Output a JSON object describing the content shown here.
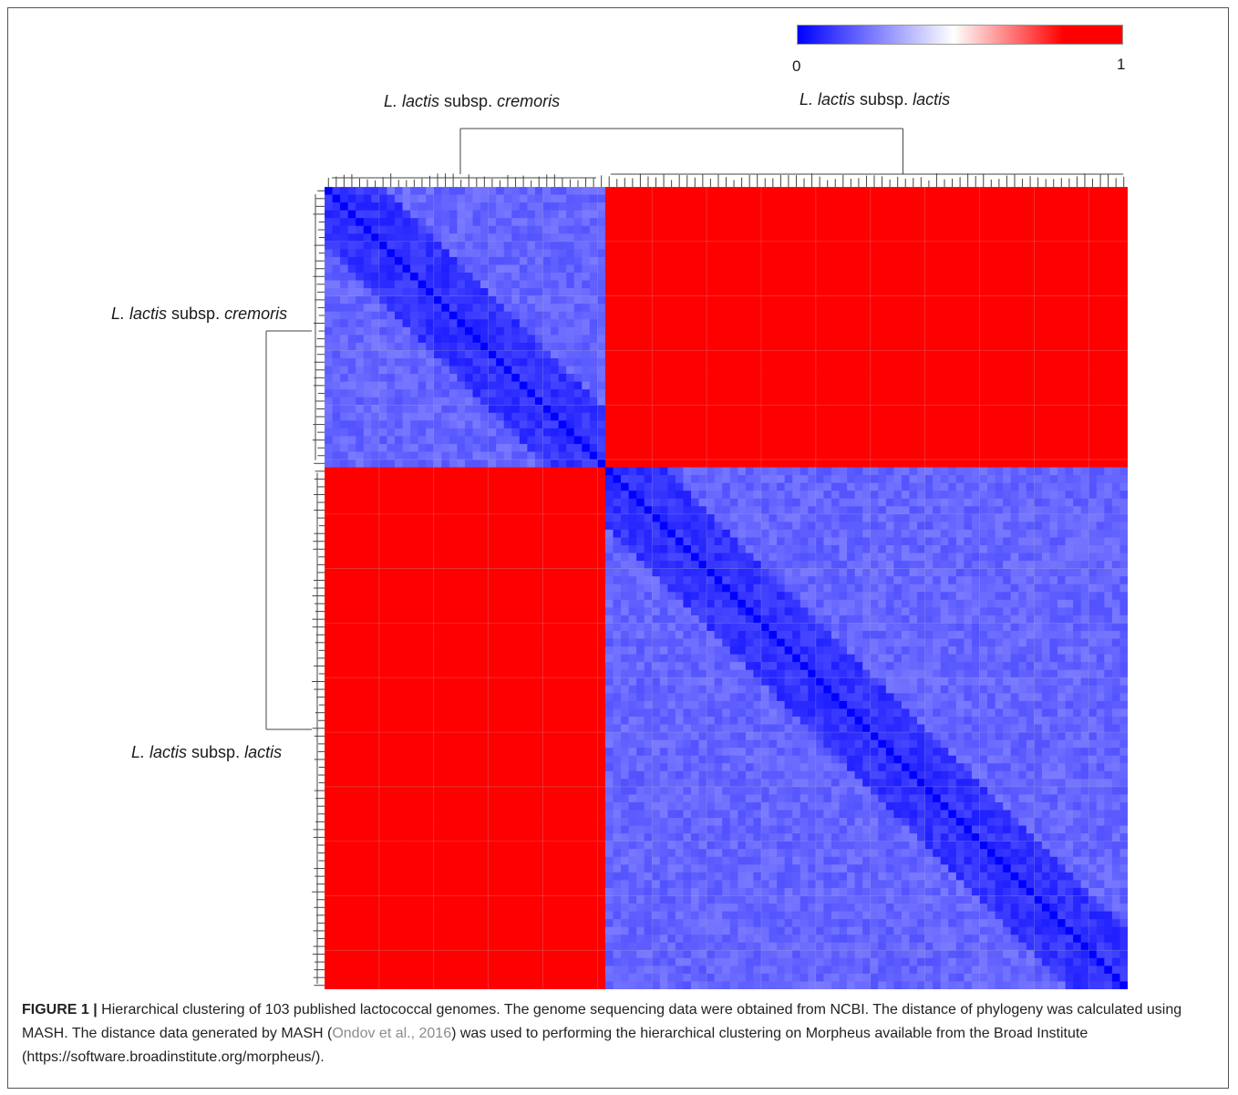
{
  "colorbar": {
    "min_label": "0",
    "max_label": "1",
    "low_color": "#0000ff",
    "mid_color": "#ffffff",
    "high_color": "#ff0000"
  },
  "labels": {
    "top_left_italic": "L. lactis",
    "top_left_mid": " subsp. ",
    "top_left_italic2": "cremoris",
    "top_right_italic": "L. lactis",
    "top_right_mid": " subsp. ",
    "top_right_italic2": "lactis",
    "left_top_italic": "L. lactis",
    "left_top_mid": " subsp. ",
    "left_top_italic2": "cremoris",
    "left_bottom_italic": "L. lactis",
    "left_bottom_mid": " subsp. ",
    "left_bottom_italic2": "lactis"
  },
  "caption": {
    "figure_label": "FIGURE 1 |",
    "text_1": " Hierarchical clustering of 103 published lactococcal genomes. The genome sequencing data were obtained from NCBI. The distance of phylogeny was calculated using MASH. The distance data generated by MASH (",
    "citation": "Ondov et al., 2016",
    "text_2": ") was used to performing the hierarchical clustering on Morpheus available from the Broad Institute (https://software.broadinstitute.org/morpheus/)."
  },
  "chart_data": {
    "type": "heatmap",
    "n_genomes": 103,
    "value_range": [
      0,
      1
    ],
    "clusters": [
      {
        "name": "L. lactis subsp. cremoris",
        "size": 36
      },
      {
        "name": "L. lactis subsp. lactis",
        "size": 67
      }
    ],
    "within_cluster_distance": 0.2,
    "between_cluster_distance": 0.95,
    "diagonal_distance": 0.0
  }
}
